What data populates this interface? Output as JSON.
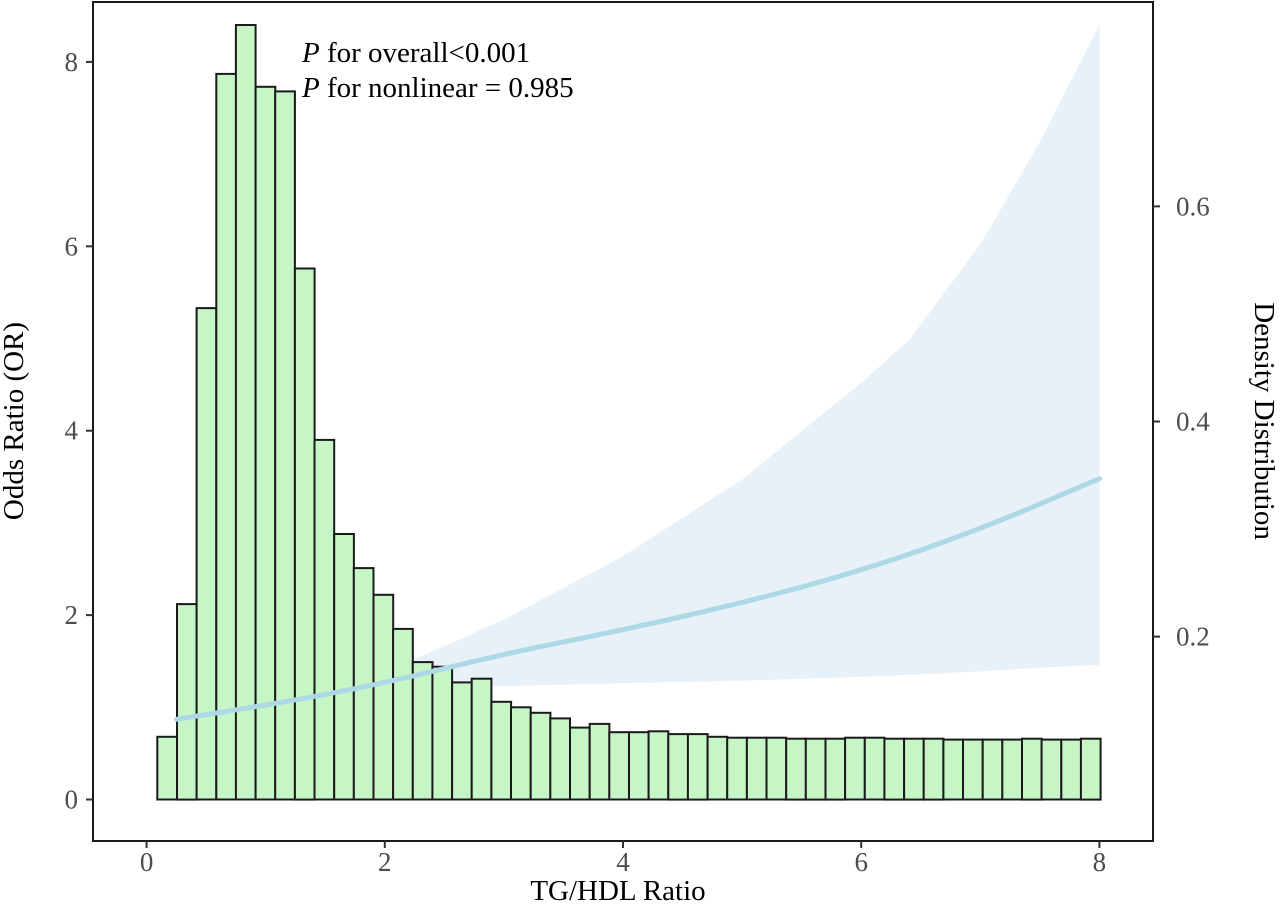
{
  "chart_data": {
    "type": "bar",
    "title": "",
    "xlabel": "TG/HDL Ratio",
    "ylabel": "Odds Ratio (OR)",
    "y2label": "Density Distribution",
    "xlim": [
      -0.45,
      8.45
    ],
    "ylim": [
      -0.45,
      8.65
    ],
    "y2lim": [
      0.01,
      0.79
    ],
    "x_ticks": [
      0,
      2,
      4,
      6,
      8
    ],
    "x_tick_labels": [
      "0",
      "2",
      "4",
      "6",
      "8"
    ],
    "y_ticks": [
      0,
      2,
      4,
      6,
      8
    ],
    "y_tick_labels": [
      "0",
      "2",
      "4",
      "6",
      "8"
    ],
    "y2_ticks": [
      0.2,
      0.4,
      0.6
    ],
    "y2_tick_labels": [
      "0.2",
      "0.4",
      "0.6"
    ],
    "grid": false,
    "annotations": [
      {
        "italic": "P",
        "text": " for overall<0.001"
      },
      {
        "italic": "P",
        "text": " for nonlinear = 0.985"
      }
    ],
    "histogram": {
      "name": "",
      "color": "#c6f5c6",
      "edge_color": "#1a1a1a",
      "bin_start": 0.09,
      "bin_width": 0.165,
      "values_or_scale": [
        0.68,
        2.12,
        5.33,
        7.87,
        8.4,
        7.73,
        7.68,
        5.76,
        3.9,
        2.88,
        2.51,
        2.22,
        1.85,
        1.49,
        1.44,
        1.27,
        1.31,
        1.06,
        1.0,
        0.94,
        0.88,
        0.78,
        0.82,
        0.73,
        0.73,
        0.74,
        0.71,
        0.71,
        0.68,
        0.67,
        0.67,
        0.67,
        0.66,
        0.66,
        0.66,
        0.67,
        0.67,
        0.66,
        0.66,
        0.66,
        0.65,
        0.65,
        0.65,
        0.65,
        0.66,
        0.65,
        0.65,
        0.66
      ]
    },
    "series": [
      {
        "name": "",
        "type": "line",
        "color": "#add8e6",
        "x": [
          0.25,
          1.0,
          2.0,
          3.0,
          4.0,
          5.0,
          6.0,
          7.0,
          8.0
        ],
        "values": [
          0.87,
          1.02,
          1.26,
          1.58,
          1.84,
          2.13,
          2.48,
          2.93,
          3.48
        ]
      }
    ],
    "confidence_band": {
      "color": "#e7f1f7",
      "x": [
        0.25,
        1.0,
        2.0,
        3.0,
        4.0,
        5.0,
        6.0,
        6.4,
        7.0,
        7.5,
        8.0
      ],
      "upper": [
        0.95,
        1.12,
        1.38,
        1.95,
        2.64,
        3.47,
        4.52,
        4.98,
        6.02,
        7.13,
        8.4
      ],
      "lower": [
        0.7,
        0.91,
        1.18,
        1.23,
        1.26,
        1.29,
        1.33,
        1.35,
        1.39,
        1.43,
        1.46
      ]
    }
  }
}
